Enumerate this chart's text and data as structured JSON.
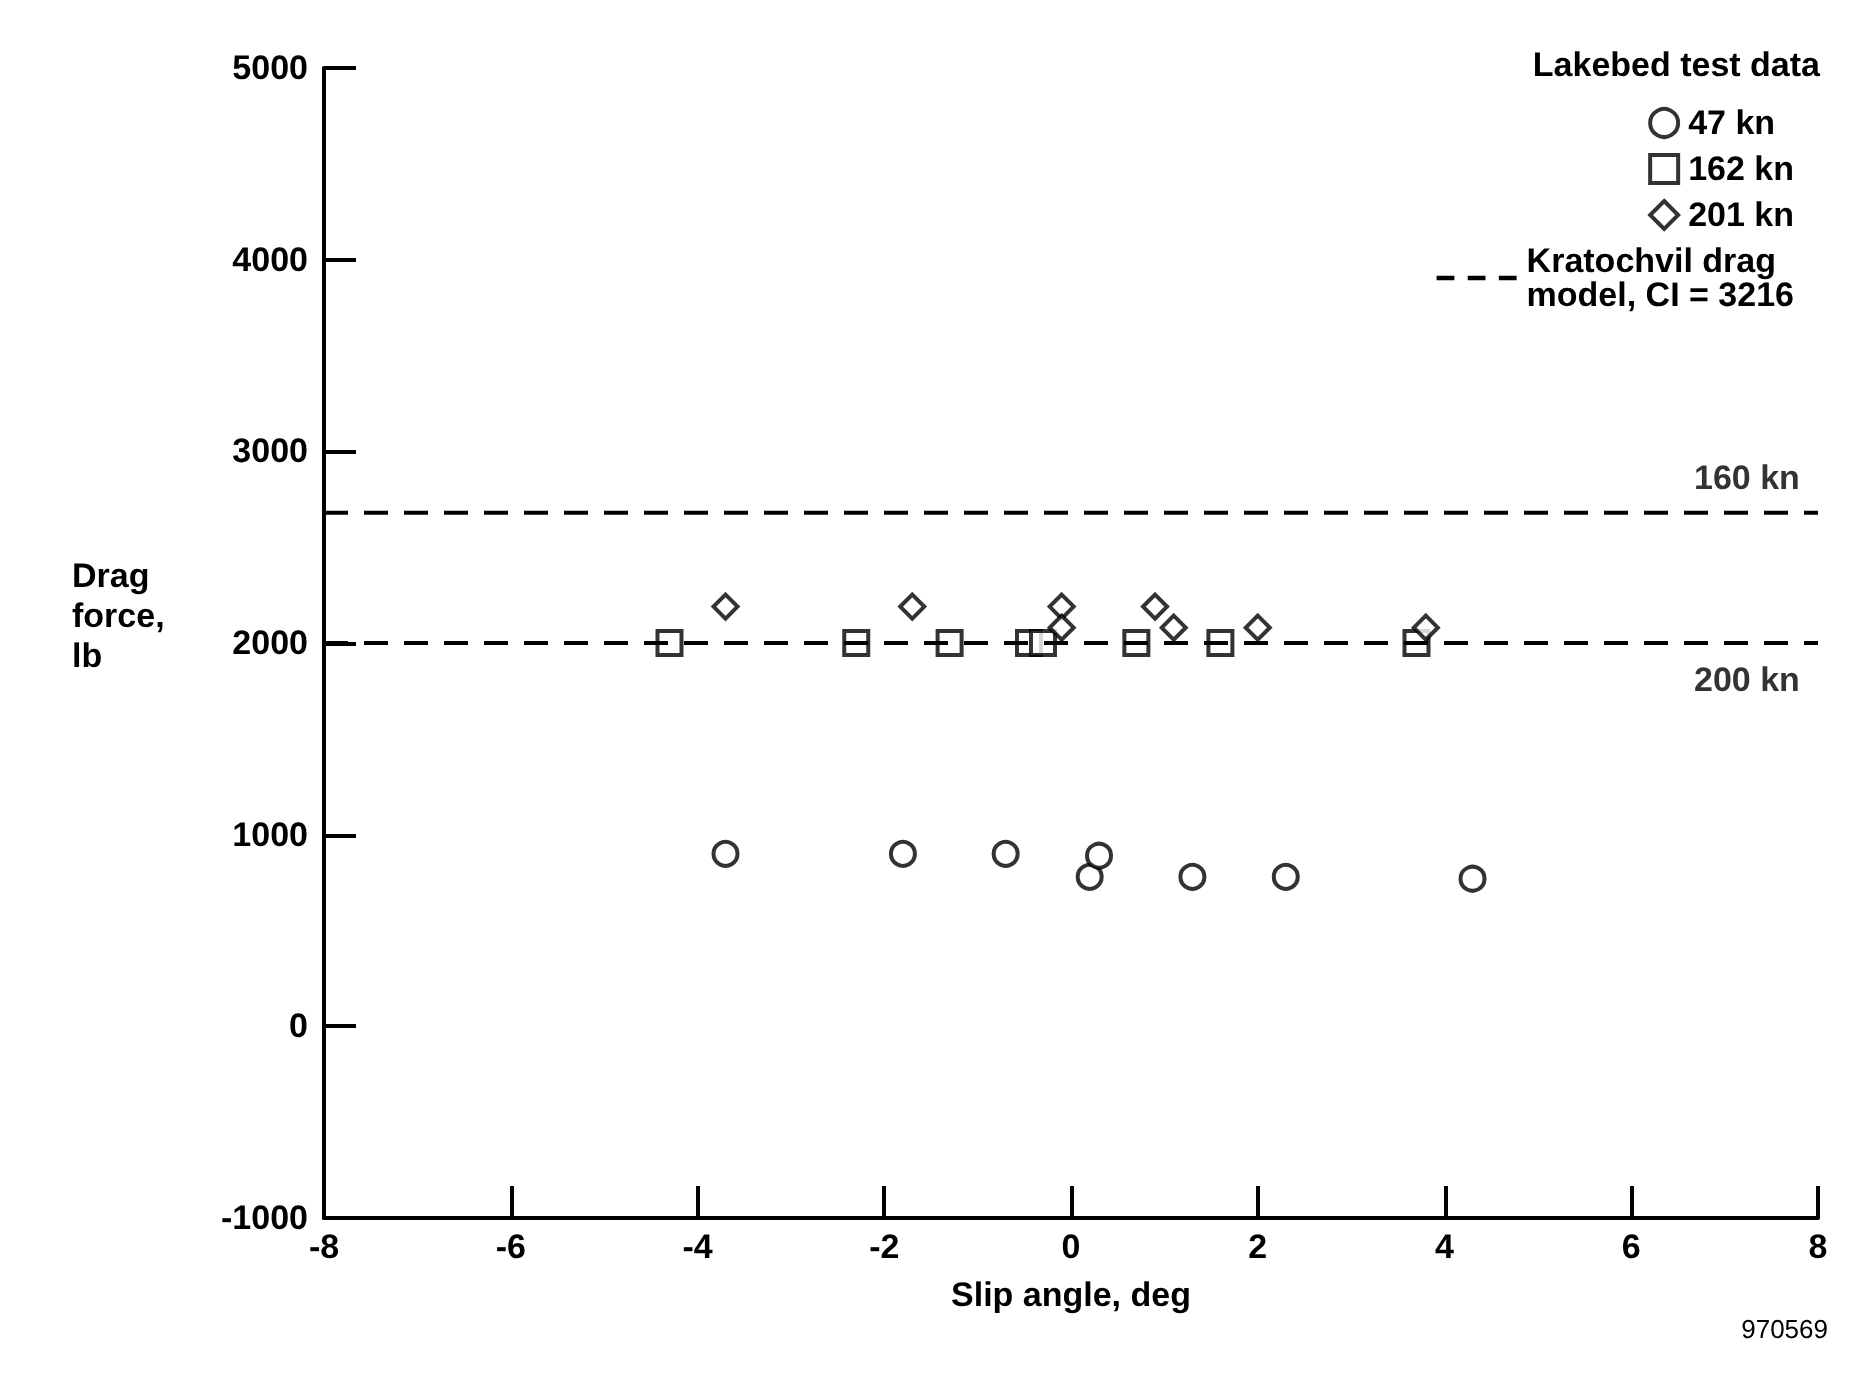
{
  "chart_data": {
    "type": "scatter",
    "xlabel": "Slip angle, deg",
    "ylabel": "Drag\nforce,\nlb",
    "legend_title": "Lakebed test data",
    "legend": "top right",
    "grid": false,
    "xlim": [
      -8,
      8
    ],
    "xticks": [
      -8,
      -6,
      -4,
      -2,
      0,
      2,
      4,
      6,
      8
    ],
    "ylim": [
      -1000,
      5000
    ],
    "yticks": [
      -1000,
      0,
      1000,
      2000,
      3000,
      4000,
      5000
    ],
    "series": [
      {
        "name": "47 kn",
        "color": "#000000",
        "marker": "circle",
        "x": [
          -3.7,
          -1.8,
          -0.7,
          0.2,
          0.3,
          1.3,
          2.3,
          4.3
        ],
        "values": [
          900,
          900,
          900,
          780,
          890,
          780,
          780,
          770
        ]
      },
      {
        "name": "162 kn",
        "color": "#000000",
        "marker": "square",
        "x": [
          -4.3,
          -2.3,
          -1.3,
          -0.45,
          -0.3,
          0.7,
          1.6,
          3.7
        ],
        "values": [
          2000,
          2000,
          2000,
          2000,
          2000,
          2000,
          2000,
          2000
        ]
      },
      {
        "name": "201 kn",
        "color": "#000000",
        "marker": "diamond",
        "x": [
          -3.7,
          -1.7,
          -0.1,
          -0.1,
          0.9,
          1.1,
          2.0,
          3.8
        ],
        "values": [
          2190,
          2190,
          2190,
          2080,
          2190,
          2080,
          2080,
          2080
        ]
      },
      {
        "name": "Kratochvil drag\nmodel, CI = 3216",
        "type": "line",
        "color": "#000000",
        "line_style": "dashed",
        "marker": "none",
        "x": [
          -8,
          8
        ],
        "values": [
          2680,
          2680
        ]
      },
      {
        "type": "line",
        "color": "#000000",
        "line_style": "dashed",
        "marker": "none",
        "x": [
          -8,
          8
        ],
        "values": [
          2000,
          2000
        ]
      }
    ],
    "annotations": [
      {
        "text": "160 kn",
        "x": 8,
        "y": 2680
      },
      {
        "text": "200 kn",
        "x": 8,
        "y": 2000
      },
      "970569"
    ]
  }
}
